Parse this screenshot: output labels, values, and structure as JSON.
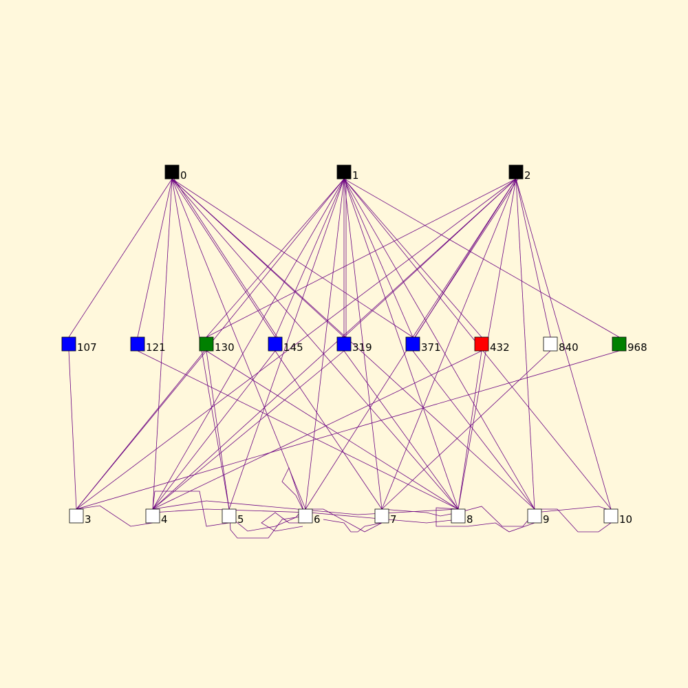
{
  "graph": {
    "background": "#FFF8DC",
    "edge_color": "#6A0080",
    "nodes": [
      {
        "id": "0",
        "label": "0",
        "color": "#000000",
        "tier": "top"
      },
      {
        "id": "1",
        "label": "1",
        "color": "#000000",
        "tier": "top"
      },
      {
        "id": "2",
        "label": "2",
        "color": "#000000",
        "tier": "top"
      },
      {
        "id": "107",
        "label": "107",
        "color": "#0000FF",
        "tier": "middle"
      },
      {
        "id": "121",
        "label": "121",
        "color": "#0000FF",
        "tier": "middle"
      },
      {
        "id": "130",
        "label": "130",
        "color": "#008000",
        "tier": "middle"
      },
      {
        "id": "145",
        "label": "145",
        "color": "#0000FF",
        "tier": "middle"
      },
      {
        "id": "319",
        "label": "319",
        "color": "#0000FF",
        "tier": "middle"
      },
      {
        "id": "371",
        "label": "371",
        "color": "#0000FF",
        "tier": "middle"
      },
      {
        "id": "432",
        "label": "432",
        "color": "#FF0000",
        "tier": "middle"
      },
      {
        "id": "840",
        "label": "840",
        "color": "#FFFFFF",
        "tier": "middle"
      },
      {
        "id": "968",
        "label": "968",
        "color": "#008000",
        "tier": "middle"
      },
      {
        "id": "3",
        "label": "3",
        "color": "#FFFFFF",
        "tier": "bottom"
      },
      {
        "id": "4",
        "label": "4",
        "color": "#FFFFFF",
        "tier": "bottom"
      },
      {
        "id": "5",
        "label": "5",
        "color": "#FFFFFF",
        "tier": "bottom"
      },
      {
        "id": "6",
        "label": "6",
        "color": "#FFFFFF",
        "tier": "bottom"
      },
      {
        "id": "7",
        "label": "7",
        "color": "#FFFFFF",
        "tier": "bottom"
      },
      {
        "id": "8",
        "label": "8",
        "color": "#FFFFFF",
        "tier": "bottom"
      },
      {
        "id": "9",
        "label": "9",
        "color": "#FFFFFF",
        "tier": "bottom"
      },
      {
        "id": "10",
        "label": "10",
        "color": "#FFFFFF",
        "tier": "bottom"
      }
    ],
    "edges": [
      [
        "0",
        "107"
      ],
      [
        "0",
        "121"
      ],
      [
        "0",
        "145"
      ],
      [
        "0",
        "145"
      ],
      [
        "0",
        "319"
      ],
      [
        "0",
        "371"
      ],
      [
        "0",
        "4"
      ],
      [
        "0",
        "5"
      ],
      [
        "0",
        "6"
      ],
      [
        "0",
        "8"
      ],
      [
        "0",
        "9"
      ],
      [
        "1",
        "130"
      ],
      [
        "1",
        "145"
      ],
      [
        "1",
        "319"
      ],
      [
        "1",
        "319"
      ],
      [
        "1",
        "371"
      ],
      [
        "1",
        "432"
      ],
      [
        "1",
        "968"
      ],
      [
        "1",
        "3"
      ],
      [
        "1",
        "4"
      ],
      [
        "1",
        "5"
      ],
      [
        "1",
        "6"
      ],
      [
        "1",
        "7"
      ],
      [
        "1",
        "8"
      ],
      [
        "1",
        "9"
      ],
      [
        "1",
        "10"
      ],
      [
        "2",
        "130"
      ],
      [
        "2",
        "319"
      ],
      [
        "2",
        "371"
      ],
      [
        "2",
        "371"
      ],
      [
        "2",
        "840"
      ],
      [
        "2",
        "3"
      ],
      [
        "2",
        "4"
      ],
      [
        "2",
        "6"
      ],
      [
        "2",
        "7"
      ],
      [
        "2",
        "8"
      ],
      [
        "2",
        "9"
      ],
      [
        "2",
        "10"
      ],
      [
        "107",
        "3"
      ],
      [
        "121",
        "8"
      ],
      [
        "130",
        "3"
      ],
      [
        "130",
        "5"
      ],
      [
        "130",
        "8"
      ],
      [
        "145",
        "4"
      ],
      [
        "145",
        "7"
      ],
      [
        "319",
        "4"
      ],
      [
        "319",
        "8"
      ],
      [
        "371",
        "9"
      ],
      [
        "432",
        "4"
      ],
      [
        "432",
        "8"
      ],
      [
        "840",
        "7"
      ],
      [
        "968",
        "3"
      ]
    ]
  }
}
